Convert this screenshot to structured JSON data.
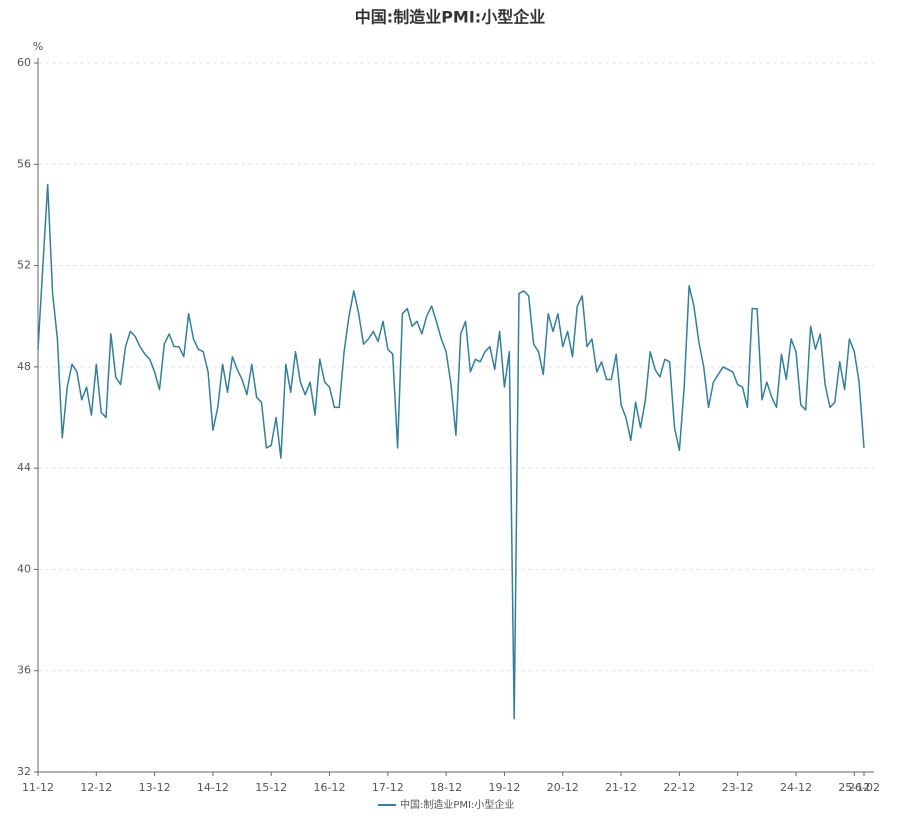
{
  "chart_data": {
    "type": "line",
    "title": "中国:制造业PMI:小型企业",
    "y_unit": "%",
    "categories": [
      "11-12",
      null,
      null,
      null,
      null,
      null,
      null,
      null,
      null,
      null,
      null,
      null,
      "12-12",
      null,
      null,
      null,
      null,
      null,
      null,
      null,
      null,
      null,
      null,
      null,
      "13-12",
      null,
      null,
      null,
      null,
      null,
      null,
      null,
      null,
      null,
      null,
      null,
      "14-12",
      null,
      null,
      null,
      null,
      null,
      null,
      null,
      null,
      null,
      null,
      null,
      "15-12",
      null,
      null,
      null,
      null,
      null,
      null,
      null,
      null,
      null,
      null,
      null,
      "16-12",
      null,
      null,
      null,
      null,
      null,
      null,
      null,
      null,
      null,
      null,
      null,
      "17-12",
      null,
      null,
      null,
      null,
      null,
      null,
      null,
      null,
      null,
      null,
      null,
      "18-12",
      null,
      null,
      null,
      null,
      null,
      null,
      null,
      null,
      null,
      null,
      null,
      "19-12",
      null,
      null,
      null,
      null,
      null,
      null,
      null,
      null,
      null,
      null,
      null,
      "20-12",
      null,
      null,
      null,
      null,
      null,
      null,
      null,
      null,
      null,
      null,
      null,
      "21-12",
      null,
      null,
      null,
      null,
      null,
      null,
      null,
      null,
      null,
      null,
      null,
      "22-12",
      null,
      null,
      null,
      null,
      null,
      null,
      null,
      null,
      null,
      null,
      null,
      "23-12",
      null,
      null,
      null,
      null,
      null,
      null,
      null,
      null,
      null,
      null,
      null,
      "24-12",
      null,
      null,
      null,
      null,
      null,
      null,
      null,
      null,
      null,
      null,
      null,
      "25-12",
      null,
      "26-02"
    ],
    "series": [
      {
        "name": "中国:制造业PMI:小型企业",
        "color": "#337f9c",
        "values": [
          48.7,
          52.0,
          55.2,
          50.9,
          49.1,
          45.2,
          47.2,
          48.1,
          47.8,
          46.7,
          47.2,
          46.1,
          48.1,
          46.2,
          46.0,
          49.3,
          47.6,
          47.3,
          48.8,
          49.4,
          49.2,
          48.8,
          48.5,
          48.3,
          47.8,
          47.1,
          48.9,
          49.3,
          48.8,
          48.8,
          48.4,
          50.1,
          49.1,
          48.7,
          48.6,
          47.8,
          45.5,
          46.4,
          48.1,
          47.0,
          48.4,
          47.9,
          47.5,
          46.9,
          48.1,
          46.8,
          46.6,
          44.8,
          44.9,
          46.0,
          44.4,
          48.1,
          47.0,
          48.6,
          47.4,
          46.9,
          47.4,
          46.1,
          48.3,
          47.4,
          47.2,
          46.4,
          46.4,
          48.6,
          50.0,
          51.0,
          50.1,
          48.9,
          49.1,
          49.4,
          49.0,
          49.8,
          48.7,
          48.5,
          44.8,
          50.1,
          50.3,
          49.6,
          49.8,
          49.3,
          50.0,
          50.4,
          49.8,
          49.1,
          48.6,
          47.3,
          45.3,
          49.3,
          49.8,
          47.8,
          48.3,
          48.2,
          48.6,
          48.8,
          47.9,
          49.4,
          47.2,
          48.6,
          34.1,
          50.9,
          51.0,
          50.8,
          48.9,
          48.6,
          47.7,
          50.1,
          49.4,
          50.1,
          48.8,
          49.4,
          48.4,
          50.4,
          50.8,
          48.8,
          49.1,
          47.8,
          48.2,
          47.5,
          47.5,
          48.5,
          46.5,
          46.0,
          45.1,
          46.6,
          45.6,
          46.7,
          48.6,
          47.9,
          47.6,
          48.3,
          48.2,
          45.6,
          44.7,
          47.2,
          51.2,
          50.4,
          49.0,
          48.0,
          46.4,
          47.4,
          47.7,
          48.0,
          47.9,
          47.8,
          47.3,
          47.2,
          46.4,
          50.3,
          50.3,
          46.7,
          47.4,
          46.8,
          46.4,
          48.5,
          47.5,
          49.1,
          48.6,
          46.5,
          46.3,
          49.6,
          48.7,
          49.3,
          47.3,
          46.4,
          46.6,
          48.2,
          47.1,
          49.1,
          48.6,
          47.4,
          44.8
        ]
      }
    ],
    "ylim": [
      32,
      60
    ],
    "yticks": [
      32,
      36,
      40,
      44,
      48,
      52,
      56,
      60
    ],
    "grid": true,
    "legend": "bottom"
  }
}
